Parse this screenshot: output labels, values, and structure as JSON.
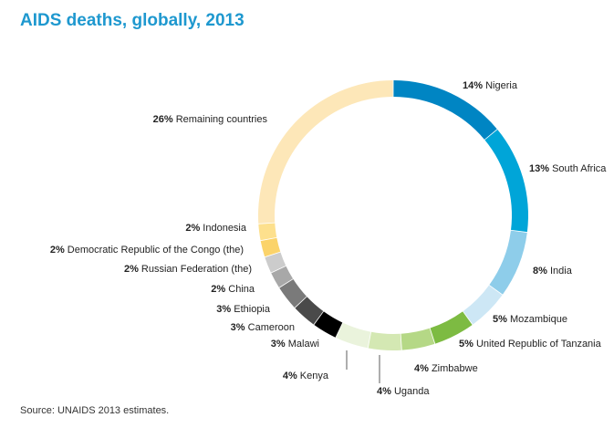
{
  "title": "AIDS deaths, globally, 2013",
  "source": "Source: UNAIDS 2013 estimates.",
  "chart_data": {
    "type": "pie",
    "style": "donut",
    "title": "AIDS deaths, globally, 2013",
    "slices": [
      {
        "label": "Nigeria",
        "pct_label": "14%",
        "value": 14,
        "color": "#0085c3"
      },
      {
        "label": "South Africa",
        "pct_label": "13%",
        "value": 13,
        "color": "#00a5d8"
      },
      {
        "label": "India",
        "pct_label": "8%",
        "value": 8,
        "color": "#8ecdea"
      },
      {
        "label": "Mozambique",
        "pct_label": "5%",
        "value": 5,
        "color": "#cde7f5"
      },
      {
        "label": "United Republic of Tanzania",
        "pct_label": "5%",
        "value": 5,
        "color": "#7dbb42"
      },
      {
        "label": "Zimbabwe",
        "pct_label": "4%",
        "value": 4,
        "color": "#b5d886"
      },
      {
        "label": "Uganda",
        "pct_label": "4%",
        "value": 4,
        "color": "#d4e8b3"
      },
      {
        "label": "Kenya",
        "pct_label": "4%",
        "value": 4,
        "color": "#eaf3dc"
      },
      {
        "label": "Malawi",
        "pct_label": "3%",
        "value": 3,
        "color": "#000000"
      },
      {
        "label": "Cameroon",
        "pct_label": "3%",
        "value": 3,
        "color": "#4a4a4a"
      },
      {
        "label": "Ethiopia",
        "pct_label": "3%",
        "value": 3,
        "color": "#7a7a7a"
      },
      {
        "label": "China",
        "pct_label": "2%",
        "value": 2,
        "color": "#a8a8a8"
      },
      {
        "label": "Russian Federation (the)",
        "pct_label": "2%",
        "value": 2,
        "color": "#cccccc"
      },
      {
        "label": "Democratic Republic of the Congo (the)",
        "pct_label": "2%",
        "value": 2,
        "color": "#fbd36a"
      },
      {
        "label": "Indonesia",
        "pct_label": "2%",
        "value": 2,
        "color": "#fde08d"
      },
      {
        "label": "Remaining countries",
        "pct_label": "26%",
        "value": 26,
        "color": "#fde7b8"
      }
    ]
  }
}
